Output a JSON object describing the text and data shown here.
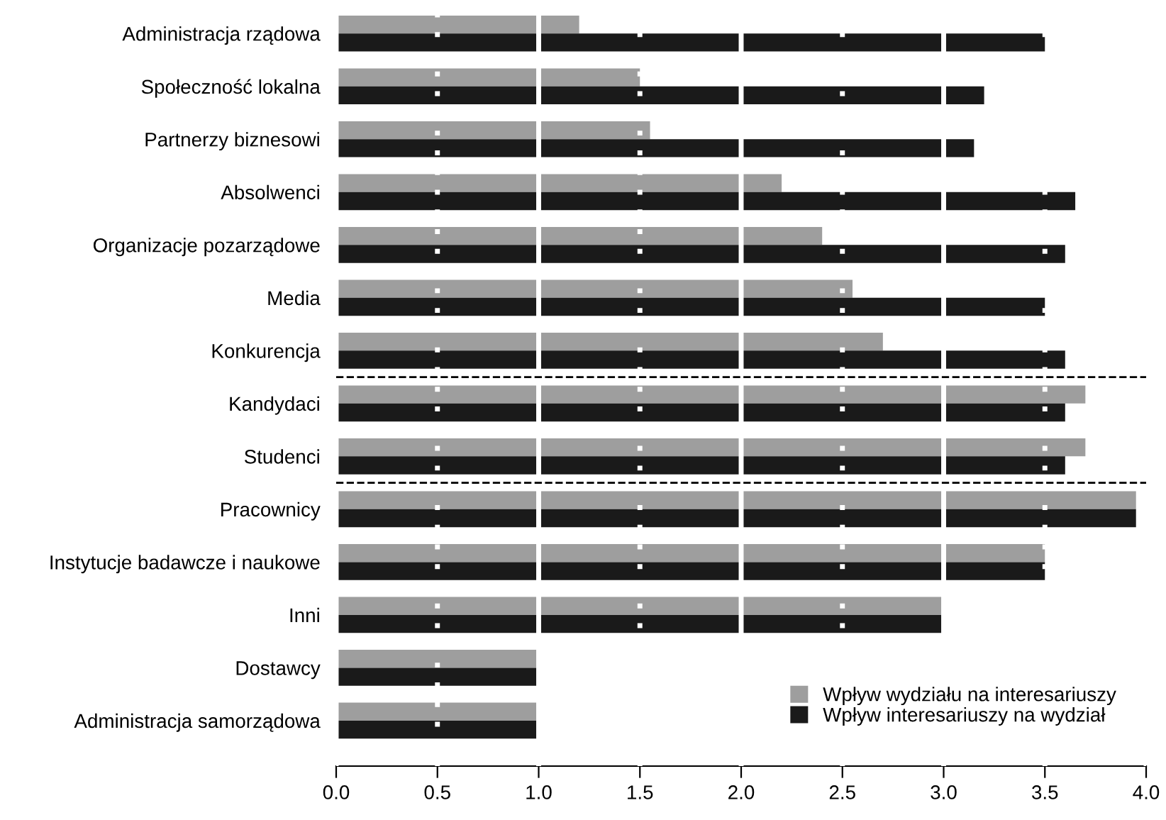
{
  "chart_data": {
    "type": "bar",
    "orientation": "horizontal",
    "categories": [
      "Administracja rządowa",
      "Społeczność lokalna",
      "Partnerzy biznesowi",
      "Absolwenci",
      "Organizacje pozarządowe",
      "Media",
      "Konkurencja",
      "Kandydaci",
      "Studenci",
      "Pracownicy",
      "Instytucje badawcze i naukowe",
      "Inni",
      "Dostawcy",
      "Administracja samorządowa"
    ],
    "series": [
      {
        "name": "Wpływ wydziału na interesariuszy",
        "color": "#9e9e9e",
        "values": [
          1.2,
          1.5,
          1.55,
          2.2,
          2.4,
          2.55,
          2.7,
          3.7,
          3.7,
          3.95,
          3.5,
          3.0,
          1.0,
          1.0
        ]
      },
      {
        "name": "Wpływ interesariuszy na wydział",
        "color": "#1a1a1a",
        "values": [
          3.5,
          3.2,
          3.15,
          3.65,
          3.6,
          3.5,
          3.6,
          3.6,
          3.6,
          3.95,
          3.5,
          3.0,
          1.0,
          1.0
        ]
      }
    ],
    "xlim": [
      0,
      4
    ],
    "xticks": [
      {
        "value": 0,
        "label": "0.0"
      },
      {
        "value": 0.5,
        "label": "0.5"
      },
      {
        "value": 1,
        "label": "1.0"
      },
      {
        "value": 1.5,
        "label": "1.5"
      },
      {
        "value": 2,
        "label": "2.0"
      },
      {
        "value": 2.5,
        "label": "2.5"
      },
      {
        "value": 3,
        "label": "3.0"
      },
      {
        "value": 3.5,
        "label": "3.5"
      },
      {
        "value": 4,
        "label": "4.0"
      }
    ],
    "grid": "x",
    "legend": "bottom right"
  }
}
